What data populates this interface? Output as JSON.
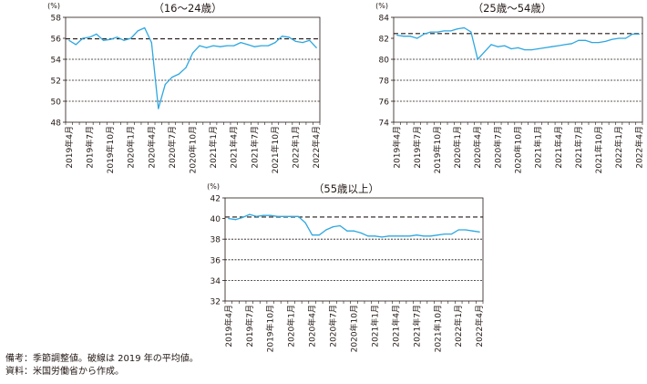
{
  "chart_data": [
    {
      "type": "line",
      "title": "（16～24歳）",
      "unit": "(%)",
      "ylim": [
        48,
        58
      ],
      "yticks": [
        "48",
        "50",
        "52",
        "54",
        "56",
        "58"
      ],
      "grid": "dashed at 50, 52, 54",
      "xticks": [
        "2019年4月",
        "2019年7月",
        "2019年10月",
        "2020年1月",
        "2020年4月",
        "2020年7月",
        "2020年10月",
        "2021年1月",
        "2021年4月",
        "2021年7月",
        "2021年10月",
        "2022年1月",
        "2022年4月"
      ],
      "x": [
        "2019年4月",
        "2019年5月",
        "2019年6月",
        "2019年7月",
        "2019年8月",
        "2019年9月",
        "2019年10月",
        "2019年11月",
        "2019年12月",
        "2020年1月",
        "2020年2月",
        "2020年3月",
        "2020年4月",
        "2020年5月",
        "2020年6月",
        "2020年7月",
        "2020年8月",
        "2020年9月",
        "2020年10月",
        "2020年11月",
        "2020年12月",
        "2021年1月",
        "2021年2月",
        "2021年3月",
        "2021年4月",
        "2021年5月",
        "2021年6月",
        "2021年7月",
        "2021年8月",
        "2021年9月",
        "2021年10月",
        "2021年11月",
        "2021年12月",
        "2022年1月",
        "2022年2月",
        "2022年3月",
        "2022年4月"
      ],
      "series": [
        {
          "values": [
            55.8,
            55.4,
            56.0,
            56.1,
            56.4,
            55.8,
            55.9,
            56.1,
            55.8,
            56.0,
            56.7,
            57.0,
            55.6,
            49.3,
            51.6,
            52.3,
            52.6,
            53.2,
            54.6,
            55.3,
            55.1,
            55.3,
            55.2,
            55.3,
            55.3,
            55.6,
            55.4,
            55.2,
            55.3,
            55.3,
            55.6,
            56.2,
            56.1,
            55.7,
            55.6,
            55.8,
            55.1
          ]
        }
      ],
      "reference": {
        "style": "dashed",
        "value": 55.95
      },
      "line_color": "#2EA7E0"
    },
    {
      "type": "line",
      "title": "（25歳～54歳）",
      "unit": "(%)",
      "ylim": [
        74,
        84
      ],
      "yticks": [
        "74",
        "76",
        "78",
        "80",
        "82",
        "84"
      ],
      "grid": "dashed at 76, 78, 80",
      "xticks": [
        "2019年4月",
        "2019年7月",
        "2019年10月",
        "2020年1月",
        "2020年4月",
        "2020年7月",
        "2020年10月",
        "2021年1月",
        "2021年4月",
        "2021年7月",
        "2021年10月",
        "2022年1月",
        "2022年4月"
      ],
      "x": [
        "2019年4月",
        "2019年5月",
        "2019年6月",
        "2019年7月",
        "2019年8月",
        "2019年9月",
        "2019年10月",
        "2019年11月",
        "2019年12月",
        "2020年1月",
        "2020年2月",
        "2020年3月",
        "2020年4月",
        "2020年5月",
        "2020年6月",
        "2020年7月",
        "2020年8月",
        "2020年9月",
        "2020年10月",
        "2020年11月",
        "2020年12月",
        "2021年1月",
        "2021年2月",
        "2021年3月",
        "2021年4月",
        "2021年5月",
        "2021年6月",
        "2021年7月",
        "2021年8月",
        "2021年9月",
        "2021年10月",
        "2021年11月",
        "2021年12月",
        "2022年1月",
        "2022年2月",
        "2022年3月",
        "2022年4月"
      ],
      "series": [
        {
          "values": [
            82.3,
            82.2,
            82.2,
            82.0,
            82.4,
            82.6,
            82.6,
            82.7,
            82.7,
            82.9,
            83.0,
            82.6,
            80.0,
            80.7,
            81.4,
            81.2,
            81.3,
            81.0,
            81.1,
            80.9,
            80.9,
            81.0,
            81.1,
            81.2,
            81.3,
            81.4,
            81.5,
            81.8,
            81.8,
            81.6,
            81.6,
            81.7,
            81.9,
            82.0,
            82.0,
            82.4,
            82.4
          ]
        }
      ],
      "reference": {
        "style": "dashed",
        "value": 82.45
      },
      "line_color": "#2EA7E0"
    },
    {
      "type": "line",
      "title": "（55歳以上）",
      "unit": "(%)",
      "ylim": [
        32,
        42
      ],
      "yticks": [
        "32",
        "34",
        "36",
        "38",
        "40",
        "42"
      ],
      "grid": "dashed at 34, 36, 38",
      "xticks": [
        "2019年4月",
        "2019年7月",
        "2019年10月",
        "2020年1月",
        "2020年4月",
        "2020年7月",
        "2020年10月",
        "2021年1月",
        "2021年4月",
        "2021年7月",
        "2021年10月",
        "2022年1月",
        "2022年4月"
      ],
      "x": [
        "2019年4月",
        "2019年5月",
        "2019年6月",
        "2019年7月",
        "2019年8月",
        "2019年9月",
        "2019年10月",
        "2019年11月",
        "2019年12月",
        "2020年1月",
        "2020年2月",
        "2020年3月",
        "2020年4月",
        "2020年5月",
        "2020年6月",
        "2020年7月",
        "2020年8月",
        "2020年9月",
        "2020年10月",
        "2020年11月",
        "2020年12月",
        "2021年1月",
        "2021年2月",
        "2021年3月",
        "2021年4月",
        "2021年5月",
        "2021年6月",
        "2021年7月",
        "2021年8月",
        "2021年9月",
        "2021年10月",
        "2021年11月",
        "2021年12月",
        "2022年1月",
        "2022年2月",
        "2022年3月",
        "2022年4月"
      ],
      "series": [
        {
          "values": [
            40.0,
            39.9,
            40.1,
            40.4,
            40.2,
            40.3,
            40.3,
            40.2,
            40.2,
            40.2,
            40.2,
            39.6,
            38.4,
            38.4,
            38.9,
            39.2,
            39.3,
            38.8,
            38.8,
            38.6,
            38.3,
            38.3,
            38.2,
            38.3,
            38.3,
            38.3,
            38.3,
            38.4,
            38.3,
            38.3,
            38.4,
            38.5,
            38.5,
            38.9,
            38.9,
            38.8,
            38.7
          ]
        }
      ],
      "reference": {
        "style": "dashed",
        "value": 40.15
      },
      "line_color": "#2EA7E0"
    }
  ],
  "notes": {
    "remark": "備考：季節調整値。破線は 2019 年の平均値。",
    "source": "資料：米国労働省から作成。"
  }
}
